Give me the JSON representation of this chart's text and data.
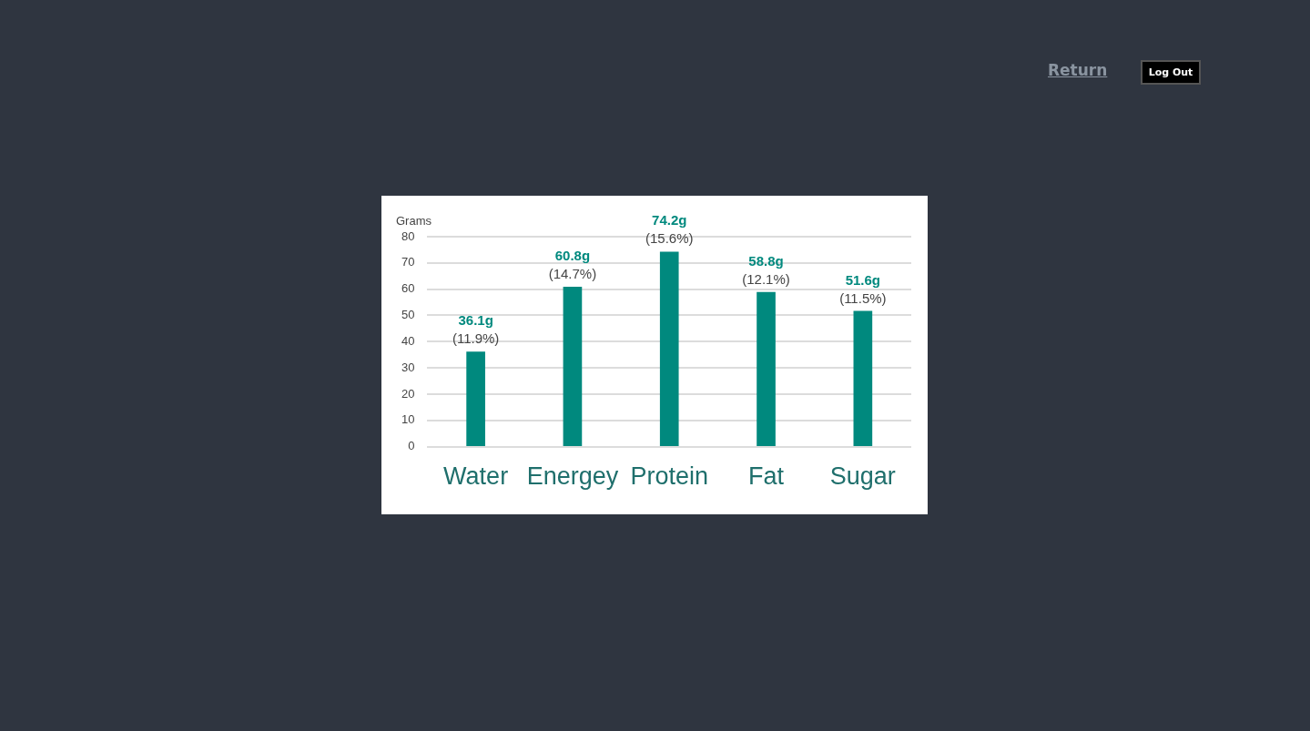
{
  "chart_data": {
    "type": "bar",
    "ylabel": "Grams",
    "categories": [
      "Water",
      "Energey",
      "Protein",
      "Fat",
      "Sugar"
    ],
    "values": [
      36.1,
      60.8,
      74.2,
      58.8,
      51.6
    ],
    "color": "#00897e",
    "value_labels": [
      "36.1g\n(11.9%)",
      "60.8g\n(14.7%)",
      "74.2g\n(15.6%)",
      "58.8g\n(12.1%)",
      "51.6g\n(11.5%)"
    ],
    "ylim": [
      0,
      80
    ],
    "yticks": [
      0,
      10,
      20,
      30,
      40,
      50,
      60,
      70,
      80
    ],
    "grid": "y",
    "legend": false,
    "annotations": [
      "Return",
      "Log Out"
    ]
  }
}
